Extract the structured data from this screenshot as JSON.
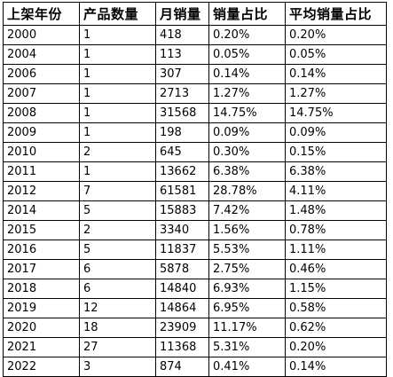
{
  "table": {
    "headers": [
      "上架年份",
      "产品数量",
      "月销量",
      "销量占比",
      "平均销量占比"
    ],
    "rows": [
      [
        "2000",
        "1",
        "418",
        "0.20%",
        "0.20%"
      ],
      [
        "2004",
        "1",
        "113",
        "0.05%",
        "0.05%"
      ],
      [
        "2006",
        "1",
        "307",
        "0.14%",
        "0.14%"
      ],
      [
        "2007",
        "1",
        "2713",
        "1.27%",
        "1.27%"
      ],
      [
        "2008",
        "1",
        "31568",
        "14.75%",
        "14.75%"
      ],
      [
        "2009",
        "1",
        "198",
        "0.09%",
        "0.09%"
      ],
      [
        "2010",
        "2",
        "645",
        "0.30%",
        "0.15%"
      ],
      [
        "2011",
        "1",
        "13662",
        "6.38%",
        "6.38%"
      ],
      [
        "2012",
        "7",
        "61581",
        "28.78%",
        "4.11%"
      ],
      [
        "2014",
        "5",
        "15883",
        "7.42%",
        "1.48%"
      ],
      [
        "2015",
        "2",
        "3340",
        "1.56%",
        "0.78%"
      ],
      [
        "2016",
        "5",
        "11837",
        "5.53%",
        "1.11%"
      ],
      [
        "2017",
        "6",
        "5878",
        "2.75%",
        "0.46%"
      ],
      [
        "2018",
        "6",
        "14840",
        "6.93%",
        "1.15%"
      ],
      [
        "2019",
        "12",
        "14864",
        "6.95%",
        "0.58%"
      ],
      [
        "2020",
        "18",
        "23909",
        "11.17%",
        "0.62%"
      ],
      [
        "2021",
        "27",
        "11368",
        "5.31%",
        "0.20%"
      ],
      [
        "2022",
        "3",
        "874",
        "0.41%",
        "0.14%"
      ]
    ]
  }
}
